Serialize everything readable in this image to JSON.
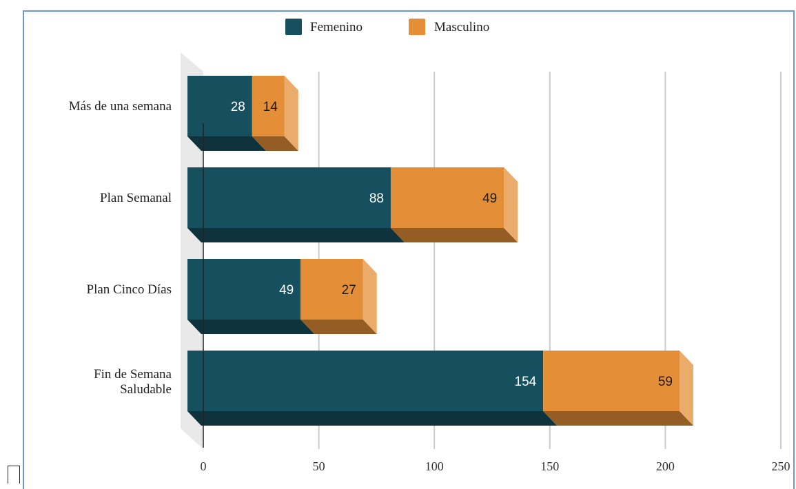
{
  "chart_data": {
    "type": "bar",
    "orientation": "horizontal",
    "stacked": true,
    "style": "3d",
    "categories": [
      "Más de una semana",
      "Plan Semanal",
      "Plan Cinco Días",
      "Fin de Semana Saludable"
    ],
    "series": [
      {
        "name": "Femenino",
        "color": "#164f5e",
        "values": [
          28,
          88,
          49,
          154
        ]
      },
      {
        "name": "Masculino",
        "color": "#e48f38",
        "values": [
          14,
          49,
          27,
          59
        ]
      }
    ],
    "xlim": [
      0,
      250
    ],
    "x_ticks": [
      "0",
      "50",
      "100",
      "150",
      "200",
      "250"
    ],
    "grid": "vertical",
    "legend_position": "top",
    "data_labels": true
  }
}
